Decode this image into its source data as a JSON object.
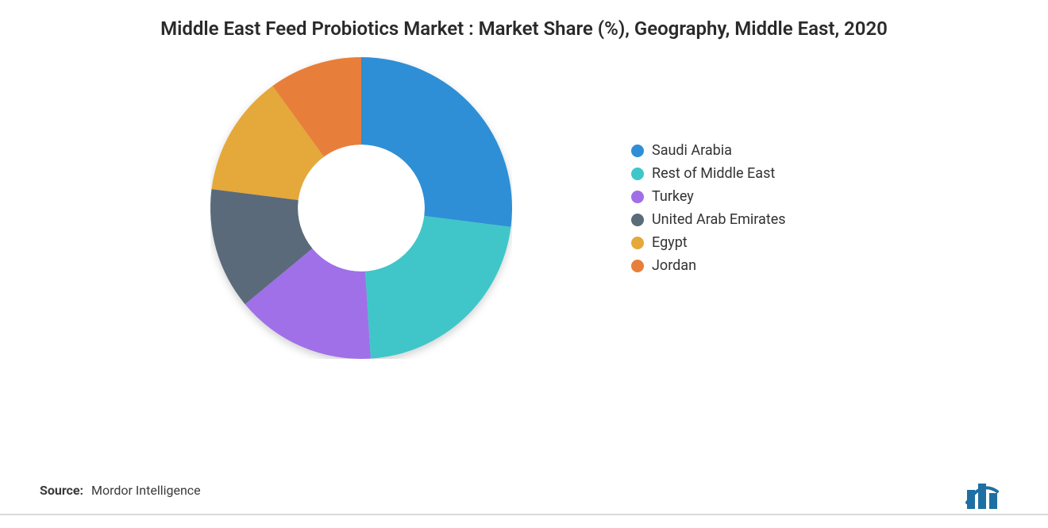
{
  "title": "Middle East Feed Probiotics Market : Market Share (%), Geography, Middle East, 2020",
  "source_label": "Source:",
  "source_value": "Mordor Intelligence",
  "chart": {
    "type": "donut",
    "inner_radius_ratio": 0.42,
    "outer_radius": 190,
    "background_color": "#ffffff",
    "title_fontsize": 24,
    "legend_fontsize": 18,
    "shadow_color": "rgba(0,0,0,0.18)",
    "start_angle_deg": 0,
    "series": [
      {
        "label": "Saudi Arabia",
        "value": 27,
        "color": "#2f8fd6"
      },
      {
        "label": "Rest of Middle East",
        "value": 22,
        "color": "#3fc6c9"
      },
      {
        "label": "Turkey",
        "value": 15,
        "color": "#a06fe8"
      },
      {
        "label": "United Arab Emirates",
        "value": 13,
        "color": "#5a6b7a"
      },
      {
        "label": "Egypt",
        "value": 13,
        "color": "#e5a83b"
      },
      {
        "label": "Jordan",
        "value": 10,
        "color": "#e77f3a"
      }
    ]
  },
  "logo": {
    "bar_colors": [
      "#1e6fa3",
      "#1e6fa3",
      "#1e6fa3"
    ],
    "accent_color": "#1e6fa3"
  }
}
